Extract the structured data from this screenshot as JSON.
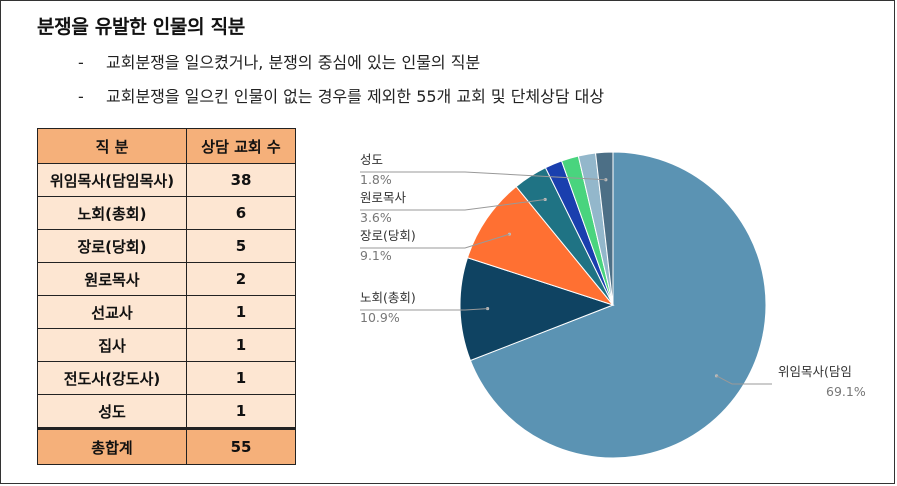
{
  "title": "분쟁을 유발한 인물의 직분",
  "bullets": [
    {
      "dash": "-",
      "text": "교회분쟁을 일으켰거나, 분쟁의 중심에 있는 인물의 직분"
    },
    {
      "dash": "-",
      "text": "교회분쟁을 일으킨 인물이 없는 경우를 제외한 55개 교회 및 단체상담 대상"
    }
  ],
  "table": {
    "headers": [
      "직 분",
      "상담 교회 수"
    ],
    "rows": [
      {
        "label": "위임목사(담임목사)",
        "value": "38"
      },
      {
        "label": "노회(총회)",
        "value": "6"
      },
      {
        "label": "장로(당회)",
        "value": "5"
      },
      {
        "label": "원로목사",
        "value": "2"
      },
      {
        "label": "선교사",
        "value": "1"
      },
      {
        "label": "집사",
        "value": "1"
      },
      {
        "label": "전도사(강도사)",
        "value": "1"
      },
      {
        "label": "성도",
        "value": "1"
      }
    ],
    "total": {
      "label": "총합계",
      "value": "55"
    }
  },
  "chart_data": {
    "type": "pie",
    "start_angle_deg": 0,
    "direction": "clockwise",
    "slices": [
      {
        "name": "위임목사(담임목사)",
        "value": 38,
        "label_name": "위임목사(담임",
        "label_pct": "69.1%",
        "color": "#5b93b3"
      },
      {
        "name": "노회(총회)",
        "value": 6,
        "label_name": "노회(총회)",
        "label_pct": "10.9%",
        "color": "#0f4362"
      },
      {
        "name": "장로(당회)",
        "value": 5,
        "label_name": "장로(당회)",
        "label_pct": "9.1%",
        "color": "#ff7032"
      },
      {
        "name": "원로목사",
        "value": 2,
        "label_name": "원로목사",
        "label_pct": "3.6%",
        "color": "#1f7384"
      },
      {
        "name": "선교사",
        "value": 1,
        "label_name": "",
        "label_pct": "",
        "color": "#1a3fae"
      },
      {
        "name": "집사",
        "value": 1,
        "label_name": "",
        "label_pct": "",
        "color": "#49d47e"
      },
      {
        "name": "전도사(강도사)",
        "value": 1,
        "label_name": "",
        "label_pct": "",
        "color": "#93b7cb"
      },
      {
        "name": "성도",
        "value": 1,
        "label_name": "성도",
        "label_pct": "1.8%",
        "color": "#4c6f86"
      }
    ]
  }
}
